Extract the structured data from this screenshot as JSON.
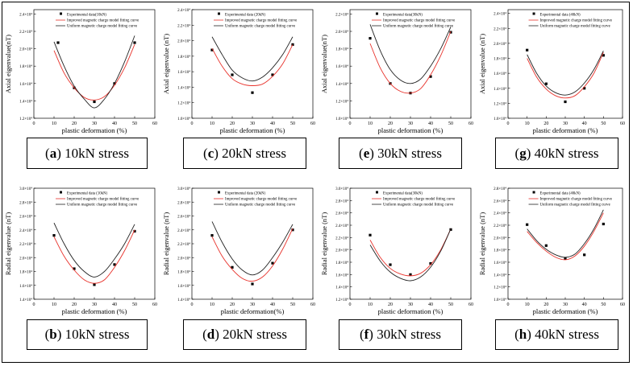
{
  "colors": {
    "experimental": "#000000",
    "improved": "#e8312a",
    "uniform": "#222222",
    "axis": "#000000"
  },
  "chart_data": [
    {
      "type": "scatter",
      "panel_id": "a",
      "label": "a",
      "caption": "10kN stress",
      "xlabel": "plastic deformation (%)",
      "ylabel": "Axial eigenvalue(nT)",
      "xlim": [
        0,
        60
      ],
      "xticks": [
        "0",
        "10",
        "20",
        "30",
        "40",
        "50",
        "60"
      ],
      "ylim": [
        1.2,
        2.45
      ],
      "yticks": [
        "1.2×10⁴",
        "1.4×10⁴",
        "1.6×10⁴",
        "1.8×10⁴",
        "2.0×10⁴",
        "2.2×10⁴",
        "2.4×10⁴"
      ],
      "ytick_values": [
        1.2,
        1.4,
        1.6,
        1.8,
        2.0,
        2.2,
        2.4
      ],
      "legend": [
        "Experimental data(10kN)",
        "Improved magnetic charge model fitting curve",
        "Uniform magnetic charge model fitting curve"
      ],
      "series": [
        {
          "kind": "points",
          "x": [
            12,
            20,
            30,
            40,
            50
          ],
          "y": [
            2.07,
            1.55,
            1.39,
            1.6,
            2.07
          ]
        },
        {
          "kind": "improved",
          "x": [
            10,
            15,
            20,
            25,
            30,
            35,
            40,
            45,
            50
          ],
          "y": [
            1.98,
            1.72,
            1.55,
            1.44,
            1.41,
            1.45,
            1.58,
            1.78,
            2.05
          ]
        },
        {
          "kind": "uniform",
          "x": [
            10,
            15,
            20,
            25,
            30,
            35,
            40,
            45,
            50
          ],
          "y": [
            2.08,
            1.8,
            1.57,
            1.42,
            1.32,
            1.42,
            1.6,
            1.85,
            2.15
          ]
        }
      ]
    },
    {
      "type": "scatter",
      "panel_id": "c",
      "label": "c",
      "caption": "20kN stress",
      "xlabel": "plastic deformation (%)",
      "ylabel": "Axial eigenvalue (nT)",
      "xlim": [
        0,
        60
      ],
      "xticks": [
        "0",
        "10",
        "20",
        "30",
        "40",
        "50",
        "60"
      ],
      "ylim": [
        1.0,
        2.4
      ],
      "yticks": [
        "1.0×10⁴",
        "1.2×10⁴",
        "1.4×10⁴",
        "1.6×10⁴",
        "1.8×10⁴",
        "2.0×10⁴",
        "2.2×10⁴",
        "2.4×10⁴"
      ],
      "ytick_values": [
        1.0,
        1.2,
        1.4,
        1.6,
        1.8,
        2.0,
        2.2,
        2.4
      ],
      "legend": [
        "Experimental data (20kN)",
        "Improved magnetic charge model fitting curve",
        "Uniform magnetic charge model fitting curve"
      ],
      "series": [
        {
          "kind": "points",
          "x": [
            10,
            20,
            30,
            40,
            50
          ],
          "y": [
            1.88,
            1.56,
            1.33,
            1.56,
            1.95
          ]
        },
        {
          "kind": "improved",
          "x": [
            10,
            15,
            20,
            25,
            30,
            35,
            40,
            45,
            50
          ],
          "y": [
            1.9,
            1.67,
            1.51,
            1.44,
            1.42,
            1.44,
            1.54,
            1.7,
            1.95
          ]
        },
        {
          "kind": "uniform",
          "x": [
            10,
            15,
            20,
            25,
            30,
            35,
            40,
            45,
            50
          ],
          "y": [
            2.05,
            1.82,
            1.62,
            1.52,
            1.48,
            1.53,
            1.65,
            1.82,
            2.05
          ]
        }
      ]
    },
    {
      "type": "scatter",
      "panel_id": "e",
      "label": "e",
      "caption": "30kN stress",
      "xlabel": "plastic deformation (%)",
      "ylabel": "Axial eigenvalue(nT)",
      "xlim": [
        0,
        60
      ],
      "xticks": [
        "0",
        "10",
        "20",
        "30",
        "40",
        "50",
        "60"
      ],
      "ylim": [
        1.0,
        2.25
      ],
      "yticks": [
        "1.0×10⁴",
        "1.2×10⁴",
        "1.4×10⁴",
        "1.6×10⁴",
        "1.8×10⁴",
        "2.0×10⁴",
        "2.2×10⁴"
      ],
      "ytick_values": [
        1.0,
        1.2,
        1.4,
        1.6,
        1.8,
        2.0,
        2.2
      ],
      "legend": [
        "Experimental data(30kN)",
        "Improved magnetic charge model fitting curve",
        "Uniform magnetic charge model fitting curve"
      ],
      "series": [
        {
          "kind": "points",
          "x": [
            10,
            20,
            30,
            40,
            50
          ],
          "y": [
            1.92,
            1.4,
            1.29,
            1.48,
            1.99
          ]
        },
        {
          "kind": "improved",
          "x": [
            10,
            15,
            20,
            25,
            30,
            35,
            40,
            45,
            50
          ],
          "y": [
            1.86,
            1.58,
            1.4,
            1.31,
            1.29,
            1.34,
            1.5,
            1.72,
            2.0
          ]
        },
        {
          "kind": "uniform",
          "x": [
            10,
            15,
            20,
            25,
            30,
            35,
            40,
            45,
            50
          ],
          "y": [
            2.08,
            1.78,
            1.56,
            1.44,
            1.4,
            1.45,
            1.6,
            1.8,
            2.05
          ]
        }
      ]
    },
    {
      "type": "scatter",
      "panel_id": "g",
      "label": "g",
      "caption": "40kN stress",
      "xlabel": "plastic deformation (%)",
      "ylabel": "Axial eigenvalue (nT)",
      "xlim": [
        0,
        60
      ],
      "xticks": [
        "0",
        "10",
        "20",
        "30",
        "40",
        "50",
        "60"
      ],
      "ylim": [
        1.0,
        2.45
      ],
      "yticks": [
        "1.0×10⁴",
        "1.2×10⁴",
        "1.4×10⁴",
        "1.6×10⁴",
        "1.8×10⁴",
        "2.0×10⁴",
        "2.2×10⁴",
        "2.4×10⁴"
      ],
      "ytick_values": [
        1.0,
        1.2,
        1.4,
        1.6,
        1.8,
        2.0,
        2.2,
        2.4
      ],
      "legend": [
        "Experimental data (40kN)",
        "Improved magnetic charge model fitting curve",
        "Uniform magnetic charge model fitting curve"
      ],
      "series": [
        {
          "kind": "points",
          "x": [
            10,
            20,
            30,
            40,
            50
          ],
          "y": [
            1.91,
            1.46,
            1.22,
            1.4,
            1.84
          ]
        },
        {
          "kind": "improved",
          "x": [
            10,
            15,
            20,
            25,
            30,
            35,
            40,
            45,
            50
          ],
          "y": [
            1.8,
            1.55,
            1.39,
            1.3,
            1.27,
            1.3,
            1.42,
            1.6,
            1.88
          ]
        },
        {
          "kind": "uniform",
          "x": [
            10,
            15,
            20,
            25,
            30,
            35,
            40,
            45,
            50
          ],
          "y": [
            1.85,
            1.6,
            1.43,
            1.34,
            1.31,
            1.35,
            1.47,
            1.65,
            1.9
          ]
        }
      ]
    },
    {
      "type": "scatter",
      "panel_id": "b",
      "label": "b",
      "caption": "10kN stress",
      "xlabel": "plastic deformation (%)",
      "ylabel": "Radial eigenvalue (nT)",
      "xlim": [
        0,
        60
      ],
      "xticks": [
        "0",
        "10",
        "20",
        "30",
        "40",
        "50",
        "60"
      ],
      "ylim": [
        1.4,
        3.0
      ],
      "yticks": [
        "1.4×10⁴",
        "1.6×10⁴",
        "1.8×10⁴",
        "2.0×10⁴",
        "2.2×10⁴",
        "2.4×10⁴",
        "2.6×10⁴",
        "2.8×10⁴",
        "3.0×10⁴"
      ],
      "ytick_values": [
        1.4,
        1.6,
        1.8,
        2.0,
        2.2,
        2.4,
        2.6,
        2.8,
        3.0
      ],
      "legend": [
        "Experimental data (10kN)",
        "Improved magnetic charge model fitting curve",
        "Uniform magnetic charge model fitting curve"
      ],
      "series": [
        {
          "kind": "points",
          "x": [
            10,
            20,
            30,
            40,
            50
          ],
          "y": [
            2.32,
            1.84,
            1.61,
            1.9,
            2.38
          ]
        },
        {
          "kind": "improved",
          "x": [
            10,
            15,
            20,
            25,
            30,
            35,
            40,
            45,
            50
          ],
          "y": [
            2.3,
            2.02,
            1.82,
            1.68,
            1.63,
            1.68,
            1.86,
            2.1,
            2.4
          ]
        },
        {
          "kind": "uniform",
          "x": [
            10,
            15,
            20,
            25,
            30,
            35,
            40,
            45,
            50
          ],
          "y": [
            2.5,
            2.2,
            1.96,
            1.8,
            1.72,
            1.8,
            1.98,
            2.2,
            2.48
          ]
        }
      ]
    },
    {
      "type": "scatter",
      "panel_id": "d",
      "label": "d",
      "caption": "20kN stress",
      "xlabel": "plastic deformation(%)",
      "ylabel": "Radial eigenvalue (nT)",
      "xlim": [
        0,
        60
      ],
      "xticks": [
        "0",
        "10",
        "20",
        "30",
        "40",
        "50",
        "60"
      ],
      "ylim": [
        1.4,
        3.0
      ],
      "yticks": [
        "1.4×10⁴",
        "1.6×10⁴",
        "1.8×10⁴",
        "2.0×10⁴",
        "2.2×10⁴",
        "2.4×10⁴",
        "2.6×10⁴",
        "2.8×10⁴",
        "3.0×10⁴"
      ],
      "ytick_values": [
        1.4,
        1.6,
        1.8,
        2.0,
        2.2,
        2.4,
        2.6,
        2.8,
        3.0
      ],
      "legend": [
        "Experimental data (20kN)",
        "Improved magnetic charge model fitting curve",
        "Uniform magnetic charge model fitting curve"
      ],
      "series": [
        {
          "kind": "points",
          "x": [
            10,
            20,
            30,
            40,
            50
          ],
          "y": [
            2.32,
            1.86,
            1.62,
            1.92,
            2.4
          ]
        },
        {
          "kind": "improved",
          "x": [
            10,
            15,
            20,
            25,
            30,
            35,
            40,
            45,
            50
          ],
          "y": [
            2.3,
            2.02,
            1.83,
            1.7,
            1.66,
            1.72,
            1.88,
            2.12,
            2.42
          ]
        },
        {
          "kind": "uniform",
          "x": [
            10,
            15,
            20,
            25,
            30,
            35,
            40,
            45,
            50
          ],
          "y": [
            2.52,
            2.22,
            1.98,
            1.82,
            1.75,
            1.82,
            2.0,
            2.22,
            2.48
          ]
        }
      ]
    },
    {
      "type": "scatter",
      "panel_id": "f",
      "label": "f",
      "caption": "30kN stress",
      "xlabel": "plastic deformation (%)",
      "ylabel": "Radial eigenvalue (nT)",
      "xlim": [
        0,
        60
      ],
      "xticks": [
        "0",
        "10",
        "20",
        "30",
        "40",
        "50",
        "60"
      ],
      "ylim": [
        1.2,
        3.0
      ],
      "yticks": [
        "1.2×10⁴",
        "1.4×10⁴",
        "1.6×10⁴",
        "1.8×10⁴",
        "2.0×10⁴",
        "2.2×10⁴",
        "2.4×10⁴",
        "2.6×10⁴",
        "2.8×10⁴",
        "3.0×10⁴"
      ],
      "ytick_values": [
        1.2,
        1.4,
        1.6,
        1.8,
        2.0,
        2.2,
        2.4,
        2.6,
        2.8,
        3.0
      ],
      "legend": [
        "Experimental data(30kN)",
        "Improved magnetic charge model fitting curve",
        "Uniform magnetic charge model fitting curve"
      ],
      "series": [
        {
          "kind": "points",
          "x": [
            10,
            20,
            30,
            40,
            50
          ],
          "y": [
            2.24,
            1.76,
            1.6,
            1.78,
            2.33
          ]
        },
        {
          "kind": "improved",
          "x": [
            10,
            15,
            20,
            25,
            30,
            35,
            40,
            45,
            50
          ],
          "y": [
            2.16,
            1.88,
            1.7,
            1.61,
            1.58,
            1.62,
            1.76,
            2.0,
            2.34
          ]
        },
        {
          "kind": "uniform",
          "x": [
            10,
            15,
            20,
            25,
            30,
            35,
            40,
            45,
            50
          ],
          "y": [
            2.08,
            1.82,
            1.64,
            1.54,
            1.5,
            1.56,
            1.72,
            1.98,
            2.34
          ]
        }
      ]
    },
    {
      "type": "scatter",
      "panel_id": "h",
      "label": "h",
      "caption": "40kN stress",
      "xlabel": "plastic deformation (%)",
      "ylabel": "Radial eigenvalue (nT)",
      "xlim": [
        0,
        60
      ],
      "xticks": [
        "0",
        "10",
        "20",
        "30",
        "40",
        "50",
        "60"
      ],
      "ylim": [
        1.0,
        2.8
      ],
      "yticks": [
        "1.0×10⁴",
        "1.2×10⁴",
        "1.4×10⁴",
        "1.6×10⁴",
        "1.8×10⁴",
        "2.0×10⁴",
        "2.2×10⁴",
        "2.4×10⁴",
        "2.6×10⁴",
        "2.8×10⁴"
      ],
      "ytick_values": [
        1.0,
        1.2,
        1.4,
        1.6,
        1.8,
        2.0,
        2.2,
        2.4,
        2.6,
        2.8
      ],
      "legend": [
        "Experimental data (40kN)",
        "Improved magnetic charge model fitting curve",
        "Uniform magnetic charge model fitting curve"
      ],
      "series": [
        {
          "kind": "points",
          "x": [
            10,
            20,
            30,
            40,
            50
          ],
          "y": [
            2.21,
            1.87,
            1.66,
            1.72,
            2.22
          ]
        },
        {
          "kind": "improved",
          "x": [
            10,
            15,
            20,
            25,
            30,
            35,
            40,
            45,
            50
          ],
          "y": [
            2.1,
            1.92,
            1.78,
            1.68,
            1.64,
            1.7,
            1.86,
            2.1,
            2.4
          ]
        },
        {
          "kind": "uniform",
          "x": [
            10,
            15,
            20,
            25,
            30,
            35,
            40,
            45,
            50
          ],
          "y": [
            2.14,
            1.95,
            1.81,
            1.72,
            1.68,
            1.73,
            1.9,
            2.14,
            2.45
          ]
        }
      ]
    }
  ]
}
